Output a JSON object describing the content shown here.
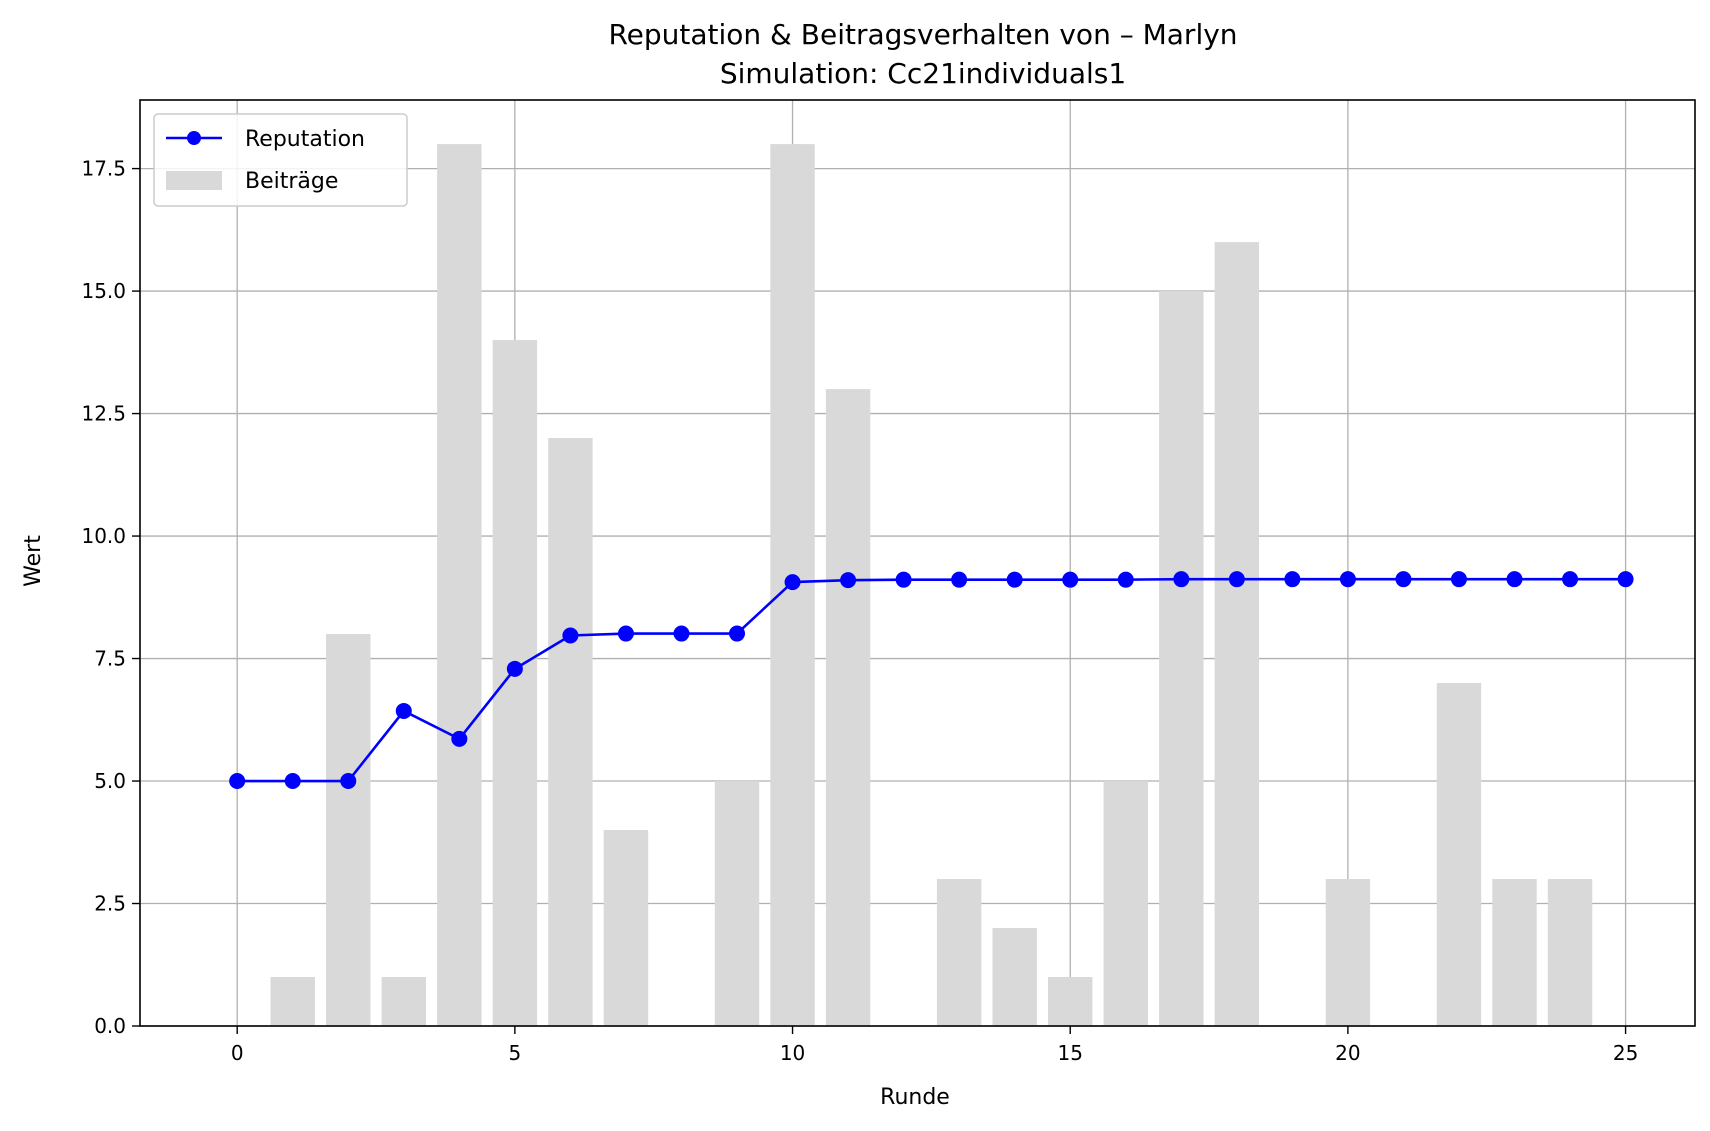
{
  "chart_data": {
    "type": "bar+line",
    "title": "Reputation & Beitragsverhalten von – Marlyn",
    "subtitle": "Simulation: Cc21individuals1",
    "xlabel": "Runde",
    "ylabel": "Wert",
    "xlim": [
      -1.75,
      26.25
    ],
    "ylim": [
      0,
      18.9
    ],
    "xticks": [
      0,
      5,
      10,
      15,
      20,
      25
    ],
    "xtick_labels": [
      "0",
      "5",
      "10",
      "15",
      "20",
      "25"
    ],
    "yticks": [
      0,
      2.5,
      5,
      7.5,
      10,
      12.5,
      15,
      17.5
    ],
    "ytick_labels": [
      "0.0",
      "2.5",
      "5.0",
      "7.5",
      "10.0",
      "12.5",
      "15.0",
      "17.5"
    ],
    "grid": true,
    "legend_position": "top-left",
    "x": [
      0,
      1,
      2,
      3,
      4,
      5,
      6,
      7,
      8,
      9,
      10,
      11,
      12,
      13,
      14,
      15,
      16,
      17,
      18,
      19,
      20,
      21,
      22,
      23,
      24,
      25
    ],
    "series": [
      {
        "name": "Reputation",
        "kind": "line",
        "color": "#0000ff",
        "values": [
          5.0,
          5.0,
          5.0,
          6.43,
          5.86,
          7.29,
          7.97,
          8.01,
          8.01,
          8.01,
          9.06,
          9.1,
          9.11,
          9.11,
          9.11,
          9.11,
          9.11,
          9.12,
          9.12,
          9.12,
          9.12,
          9.12,
          9.12,
          9.12,
          9.12,
          9.12
        ]
      },
      {
        "name": "Beiträge",
        "kind": "bar",
        "color": "#d9d9d9",
        "values": [
          0,
          1,
          8,
          1,
          18,
          14,
          12,
          4,
          0,
          5,
          18,
          13,
          0,
          3,
          2,
          1,
          5,
          15,
          16,
          0,
          3,
          0,
          7,
          3,
          3,
          0
        ]
      }
    ]
  }
}
